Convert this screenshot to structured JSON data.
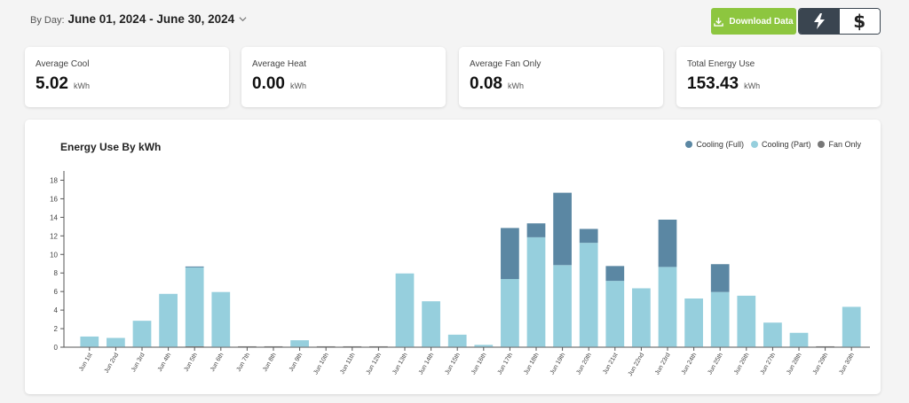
{
  "header": {
    "date_label": "By Day:",
    "date_range": "June 01, 2024 - June 30, 2024",
    "download_label": "Download Data"
  },
  "toggle": {
    "energy_icon": "lightning-bolt-icon",
    "cost_label": "$",
    "active": "energy"
  },
  "cards": [
    {
      "title": "Average Cool",
      "value": "5.02",
      "unit": "kWh"
    },
    {
      "title": "Average Heat",
      "value": "0.00",
      "unit": "kWh"
    },
    {
      "title": "Average Fan Only",
      "value": "0.08",
      "unit": "kWh"
    },
    {
      "title": "Total Energy Use",
      "value": "153.43",
      "unit": "kWh"
    }
  ],
  "colors": {
    "accent_green": "#8dc63f",
    "cooling_full": "#5b87a3",
    "cooling_part": "#96cfdd",
    "fan_only": "#777777"
  },
  "chart_data": {
    "type": "bar",
    "stacked": true,
    "title": "Energy Use By kWh",
    "ylim": [
      0,
      19
    ],
    "yticks": [
      0,
      2,
      4,
      6,
      8,
      10,
      12,
      14,
      16,
      18
    ],
    "legend": [
      "Cooling (Full)",
      "Cooling (Part)",
      "Fan Only"
    ],
    "legend_position": "top-right",
    "categories": [
      "Jun 1st",
      "Jun 2nd",
      "Jun 3rd",
      "Jun 4th",
      "Jun 5th",
      "Jun 6th",
      "Jun 7th",
      "Jun 8th",
      "Jun 9th",
      "Jun 10th",
      "Jun 11th",
      "Jun 12th",
      "Jun 13th",
      "Jun 14th",
      "Jun 15th",
      "Jun 16th",
      "Jun 17th",
      "Jun 18th",
      "Jun 19th",
      "Jun 20th",
      "Jun 21st",
      "Jun 22nd",
      "Jun 23rd",
      "Jun 24th",
      "Jun 25th",
      "Jun 26th",
      "Jun 27th",
      "Jun 28th",
      "Jun 29th",
      "Jun 30th"
    ],
    "series": [
      {
        "name": "Fan Only",
        "values": [
          0.05,
          0.05,
          0.05,
          0.05,
          0.1,
          0.05,
          0.1,
          0.1,
          0.05,
          0.1,
          0.1,
          0.1,
          0.05,
          0.05,
          0.05,
          0.05,
          0.05,
          0.05,
          0.05,
          0.05,
          0.05,
          0.05,
          0.05,
          0.05,
          0.05,
          0.05,
          0.05,
          0.05,
          0.1,
          0.05
        ]
      },
      {
        "name": "Cooling (Part)",
        "values": [
          1.1,
          0.95,
          2.8,
          5.7,
          8.5,
          5.9,
          0,
          0,
          0.7,
          0,
          0,
          0,
          7.9,
          4.9,
          1.3,
          0.2,
          7.3,
          11.8,
          8.8,
          11.2,
          7.1,
          6.3,
          8.6,
          5.2,
          5.9,
          5.5,
          2.6,
          1.5,
          0,
          4.3
        ]
      },
      {
        "name": "Cooling (Full)",
        "values": [
          0,
          0,
          0,
          0,
          0.1,
          0,
          0,
          0,
          0,
          0,
          0,
          0,
          0,
          0,
          0,
          0,
          5.5,
          1.5,
          7.8,
          1.5,
          1.6,
          0,
          5.1,
          0,
          3.0,
          0,
          0,
          0,
          0,
          0
        ]
      }
    ]
  }
}
